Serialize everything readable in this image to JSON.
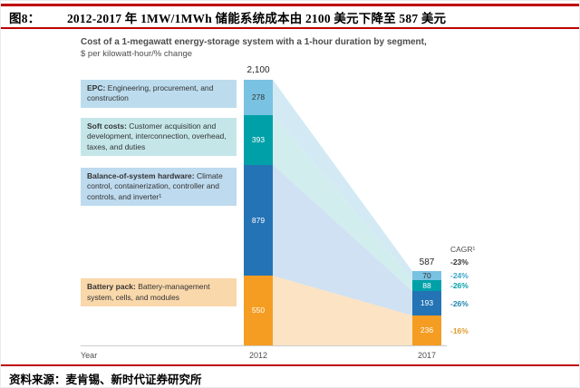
{
  "header": {
    "figure_label": "图8：",
    "title": "2012-2017 年 1MW/1MWh 储能系统成本由 2100 美元下降至 587 美元"
  },
  "footer": {
    "source": "资料来源：麦肯锡、新时代证券研究所"
  },
  "colors": {
    "accent_red": "#bf0000",
    "chart_text": "#4d4d4d"
  },
  "chart_data": {
    "type": "stacked-bar-waterfall",
    "title": "Cost of a 1-megawatt energy-storage system with a 1-hour duration by segment,",
    "subtitle": "$ per kilowatt-hour/% change",
    "xlabel": "Year",
    "categories": [
      "2012",
      "2017"
    ],
    "totals": {
      "2012": "2,100",
      "2017": "587"
    },
    "cagr_header": "CAGR¹",
    "total_cagr": "-23%",
    "total_cagr_color": "#333333",
    "legend_position": "left",
    "segments": [
      {
        "id": "epc",
        "label_bold": "EPC:",
        "label_rest": " Engineering, procurement, and construction",
        "values": {
          "2012": 278,
          "2017": 70
        },
        "cagr": "-24%",
        "color": "#79c2e2",
        "band_color": "#d3eaf5",
        "legend_bg": "#bcdcee",
        "value_color": "#333333",
        "cagr_color": "#3aa5c8"
      },
      {
        "id": "soft-costs",
        "label_bold": "Soft costs:",
        "label_rest": " Customer acquisition and development, interconnection, overhead, taxes, and duties",
        "values": {
          "2012": 393,
          "2017": 88
        },
        "cagr": "-26%",
        "color": "#00a0a8",
        "band_color": "#d2edee",
        "legend_bg": "#c4e6e9",
        "value_color": "#ffffff",
        "cagr_color": "#00a0a8"
      },
      {
        "id": "balance-of-system",
        "label_bold": "Balance-of-system hardware:",
        "label_rest": " Climate control, containerization, controller and controls, and inverter¹",
        "values": {
          "2012": 879,
          "2017": 193
        },
        "cagr": "-26%",
        "color": "#2473b5",
        "band_color": "#cfe1f2",
        "legend_bg": "#bedaee",
        "value_color": "#ffffff",
        "cagr_color": "#1d84ae"
      },
      {
        "id": "battery-pack",
        "label_bold": "Battery pack:",
        "label_rest": " Battery-management system, cells, and modules",
        "values": {
          "2012": 550,
          "2017": 236
        },
        "cagr": "-16%",
        "color": "#f59d22",
        "band_color": "#fbe3c4",
        "legend_bg": "#f9d8ab",
        "value_color": "#ffffff",
        "cagr_color": "#e09a2d"
      }
    ]
  }
}
